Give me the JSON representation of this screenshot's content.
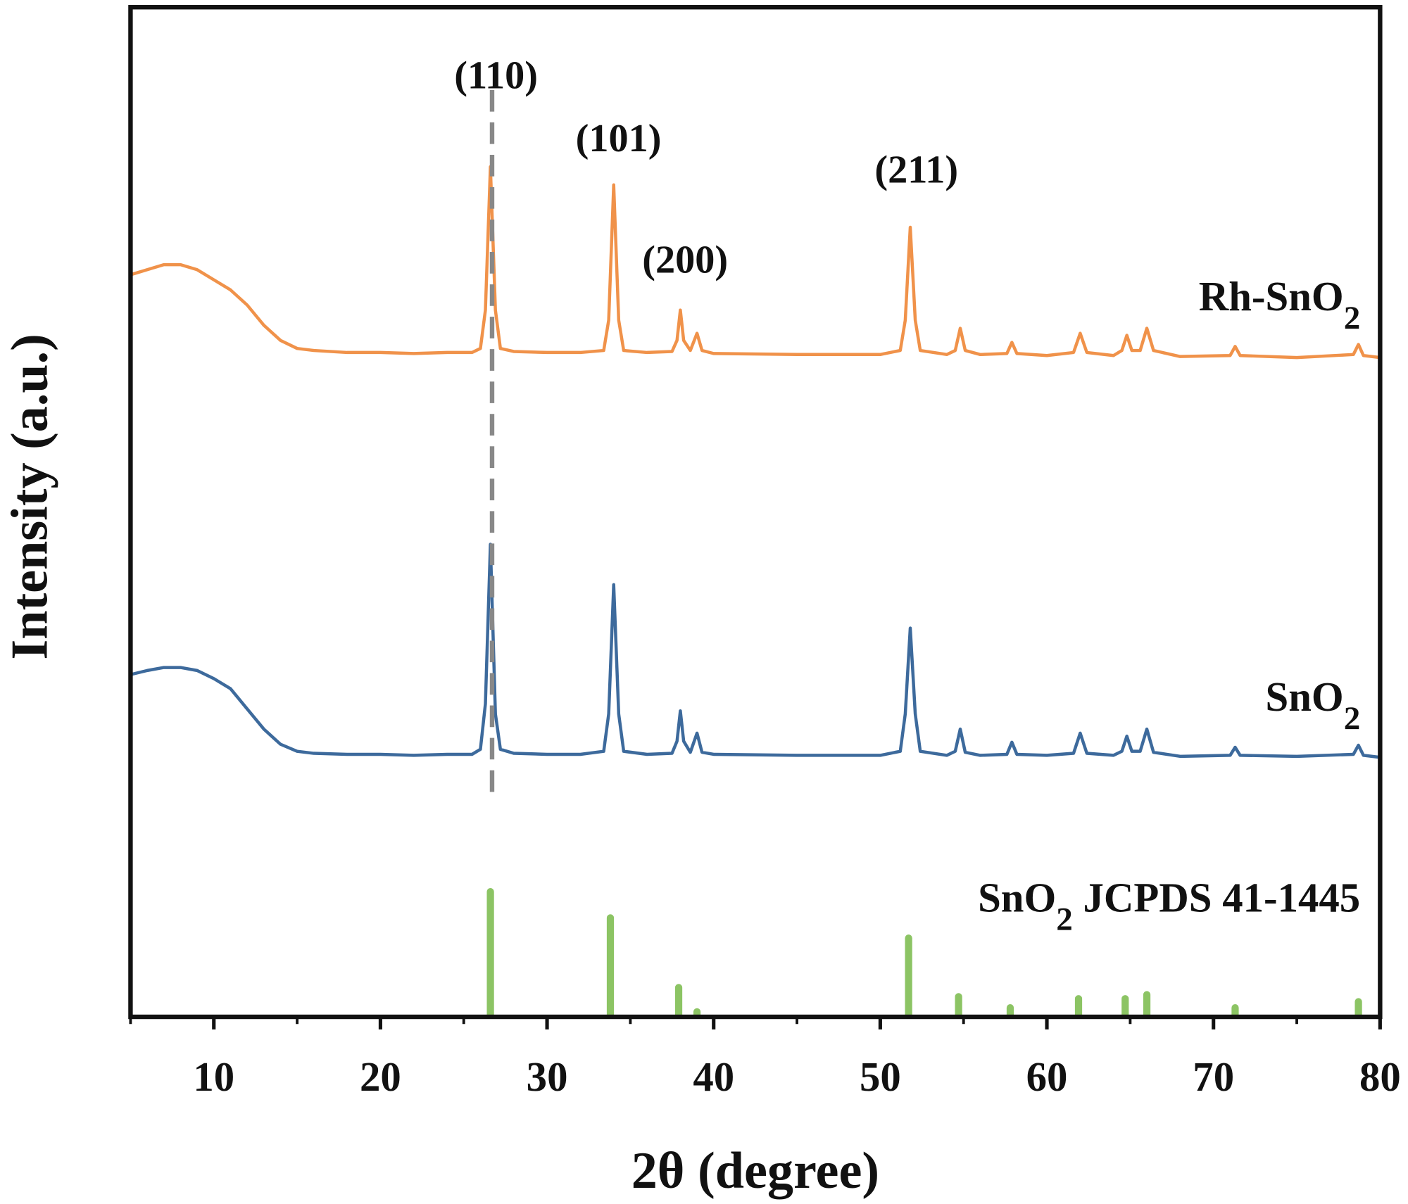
{
  "chart_data": {
    "type": "line",
    "x_label": "2θ (degree)",
    "y_label": "Intensity (a.u.)",
    "xlim": [
      5,
      80
    ],
    "ylim": [
      0,
      100
    ],
    "xticks": [
      10,
      20,
      30,
      40,
      50,
      60,
      70,
      80
    ],
    "minor_xticks": [
      5,
      15,
      25,
      35,
      45,
      55,
      65,
      75
    ],
    "vline": 26.7,
    "annotations": [
      {
        "text": "(110)"
      },
      {
        "text": "(101)"
      },
      {
        "text": "(200)"
      },
      {
        "text": "(211)"
      }
    ],
    "x": [
      5,
      6,
      7,
      8,
      9,
      10,
      11,
      12,
      13,
      14,
      15,
      16,
      18,
      20,
      22,
      24,
      25.5,
      26,
      26.3,
      26.6,
      26.9,
      27.2,
      28,
      30,
      32,
      33.4,
      33.7,
      34,
      34.3,
      34.6,
      36,
      37.5,
      37.8,
      38,
      38.2,
      38.6,
      39,
      39.3,
      40,
      45,
      50,
      51.2,
      51.5,
      51.8,
      52.1,
      52.4,
      54,
      54.5,
      54.8,
      55.1,
      56,
      57.6,
      57.9,
      58.2,
      60,
      61.6,
      62,
      62.4,
      64,
      64.5,
      64.8,
      65.1,
      65.6,
      66,
      66.4,
      68,
      71,
      71.3,
      71.6,
      75,
      78.4,
      78.7,
      79,
      80
    ],
    "series": [
      {
        "name": "Rh-SnO2",
        "color": "#f0924a",
        "type": "line",
        "values": [
          73.5,
          74,
          74.5,
          74.5,
          74,
          73,
          72,
          70.5,
          68.5,
          67,
          66.2,
          66,
          65.8,
          65.8,
          65.7,
          65.8,
          65.8,
          66.2,
          70,
          84.2,
          70,
          66.2,
          65.9,
          65.8,
          65.8,
          66,
          69,
          82.4,
          69,
          66,
          65.8,
          65.9,
          67,
          70,
          67,
          66,
          67.7,
          66,
          65.7,
          65.6,
          65.6,
          66,
          69,
          78.2,
          69,
          66,
          65.6,
          66,
          68.2,
          66,
          65.6,
          65.7,
          66.8,
          65.7,
          65.5,
          65.8,
          67.7,
          65.8,
          65.5,
          66,
          67.5,
          66,
          66,
          68.2,
          66,
          65.4,
          65.5,
          66.4,
          65.5,
          65.3,
          65.6,
          66.6,
          65.5,
          65.3
        ]
      },
      {
        "name": "SnO2",
        "color": "#3d6a9c",
        "type": "line",
        "values": [
          33.9,
          34.3,
          34.6,
          34.6,
          34.3,
          33.5,
          32.5,
          30.5,
          28.5,
          27,
          26.3,
          26.1,
          26,
          26,
          25.9,
          26,
          26,
          26.5,
          31,
          46.8,
          30,
          26.5,
          26.1,
          26,
          26,
          26.3,
          30,
          42.8,
          30,
          26.3,
          26,
          26.1,
          27.3,
          30.3,
          27.3,
          26.2,
          28.1,
          26.2,
          26,
          25.9,
          25.9,
          26.3,
          30,
          38.5,
          30,
          26.3,
          25.9,
          26.3,
          28.5,
          26.2,
          25.9,
          26,
          27.2,
          26,
          25.9,
          26.1,
          28.1,
          26.1,
          25.9,
          26.3,
          27.8,
          26.3,
          26.3,
          28.5,
          26.2,
          25.8,
          25.9,
          26.7,
          25.9,
          25.8,
          26,
          26.9,
          25.9,
          25.7
        ]
      },
      {
        "name": "SnO2 JCPDS 41-1445",
        "color": "#8cc464",
        "type": "stem",
        "x": [
          26.6,
          33.8,
          37.9,
          39.0,
          51.7,
          54.7,
          57.8,
          61.9,
          64.7,
          66.0,
          71.3,
          78.7
        ],
        "values": [
          12.4,
          9.8,
          2.9,
          0.5,
          7.8,
          2.0,
          0.9,
          1.8,
          1.8,
          2.2,
          0.9,
          1.5
        ]
      }
    ]
  }
}
